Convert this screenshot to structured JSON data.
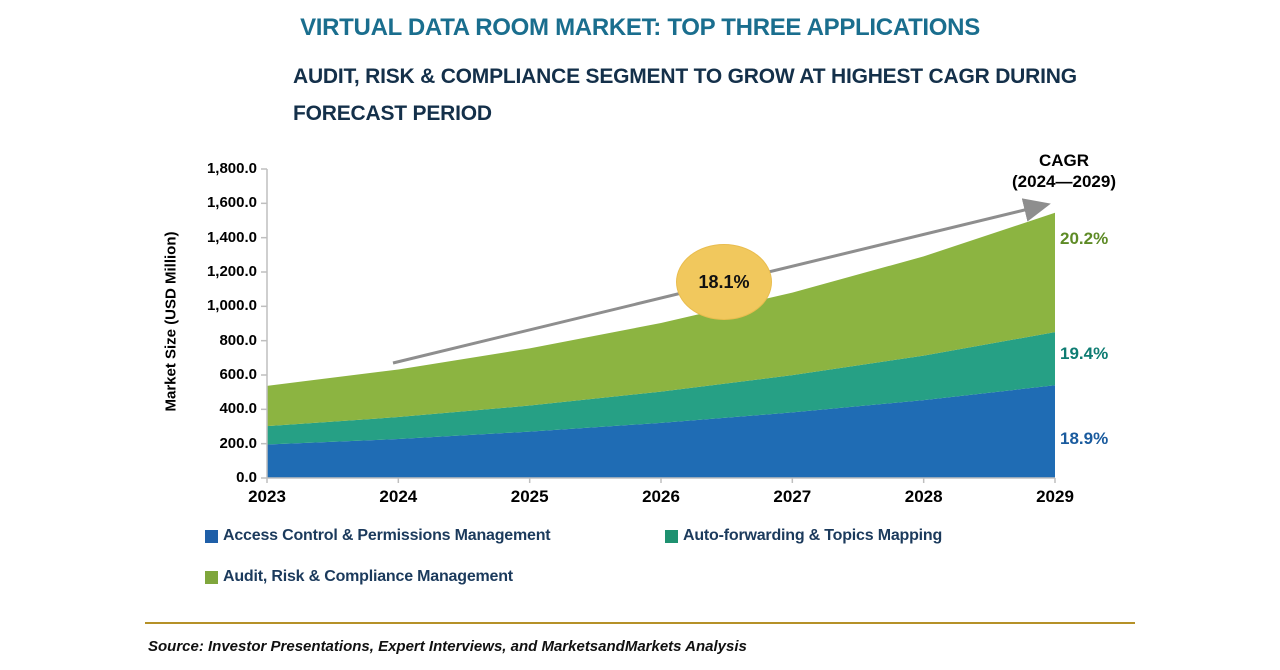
{
  "header": {
    "title": "VIRTUAL DATA ROOM MARKET: TOP THREE APPLICATIONS",
    "subtitle_line1": "AUDIT, RISK & COMPLIANCE SEGMENT TO GROW AT HIGHEST CAGR DURING",
    "subtitle_line2": "FORECAST PERIOD"
  },
  "chart_data": {
    "type": "area",
    "stacked": true,
    "title": "VIRTUAL DATA ROOM MARKET: TOP THREE APPLICATIONS",
    "xlabel": "",
    "ylabel": "Market Size (USD Million)",
    "ylim": [
      0,
      1800
    ],
    "ytick_labels_top_to_bottom": [
      "1,800.0",
      "1,600.0",
      "1,400.0",
      "1,200.0",
      "1,000.0",
      "800.0",
      "600.0",
      "400.0",
      "200.0",
      "0.0"
    ],
    "grid": false,
    "legend_position": "bottom",
    "categories": [
      "2023",
      "2024",
      "2025",
      "2026",
      "2027",
      "2028",
      "2029"
    ],
    "series": [
      {
        "name": "Access Control & Permissions Management",
        "color": "#1F6CB4",
        "legend_color": "#1F5FA8",
        "cagr": "18.9%",
        "cagr_color": "#1A5B9E",
        "values": [
          195,
          227,
          270,
          321,
          382,
          454,
          540
        ]
      },
      {
        "name": "Auto-forwarding & Topics Mapping",
        "color": "#26A085",
        "legend_color": "#1E9170",
        "cagr": "19.4%",
        "cagr_color": "#0E7C72",
        "values": [
          107,
          128,
          152,
          182,
          217,
          259,
          310
        ]
      },
      {
        "name": "Audit, Risk & Compliance Management",
        "color": "#8CB441",
        "legend_color": "#7FA63C",
        "cagr": "20.2%",
        "cagr_color": "#5E8B26",
        "values": [
          235,
          277,
          333,
          400,
          481,
          578,
          695
        ]
      }
    ],
    "annotations": {
      "cagr_header_line1": "CAGR",
      "cagr_header_line2": "(2024—2029)",
      "total_cagr_bubble": "18.1%",
      "bubble_color": "#F1C85D",
      "arrow_color": "#8E8E8E",
      "axis_color": "#BFBFBF"
    }
  },
  "footer": {
    "source": "Source: Investor Presentations, Expert Interviews, and MarketsandMarkets Analysis"
  }
}
